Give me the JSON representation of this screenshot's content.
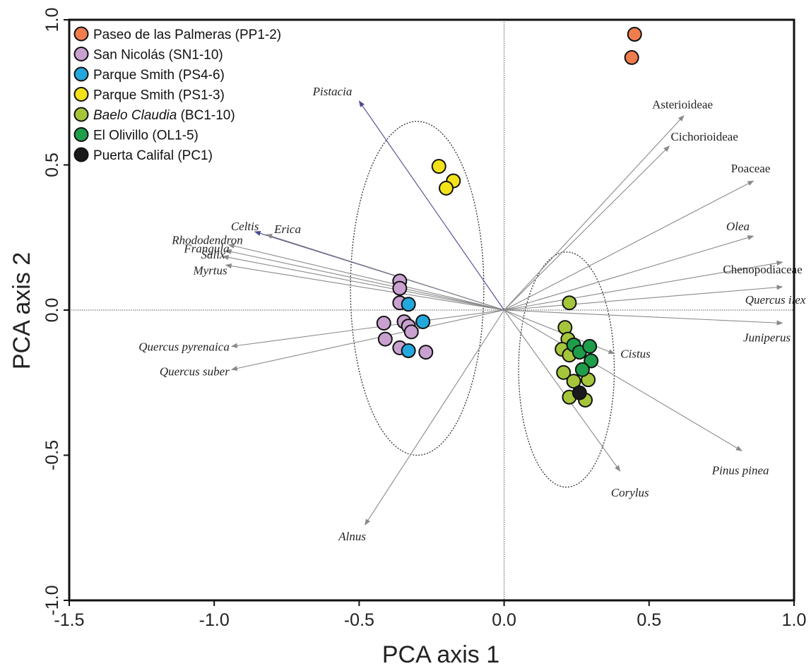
{
  "chart_data": {
    "type": "scatter",
    "title": "",
    "xlabel": "PCA axis 1",
    "ylabel": "PCA axis 2",
    "xlim": [
      -1.5,
      1.0
    ],
    "ylim": [
      -1.0,
      1.0
    ],
    "x_ticks": [
      "-1.5",
      "-1.0",
      "-0.5",
      "0.0",
      "0.5",
      "1.0"
    ],
    "y_ticks": [
      "-1.0",
      "-0.5",
      "0.0",
      "0.5",
      "1.0"
    ],
    "grid": false,
    "legend_position": "top-left",
    "series": [
      {
        "name": "Paseo de las Palmeras (PP1-2)",
        "name_italic_part": "",
        "name_rest": "Paseo de las Palmeras (PP1-2)",
        "color": "#f07d4e",
        "points": [
          [
            0.45,
            0.95
          ],
          [
            0.44,
            0.87
          ]
        ]
      },
      {
        "name": "San Nicolás (SN1-10)",
        "name_italic_part": "",
        "name_rest": "San Nicolás (SN1-10)",
        "color": "#c9a1d0",
        "points": [
          [
            -0.36,
            0.1
          ],
          [
            -0.36,
            0.075
          ],
          [
            -0.36,
            0.025
          ],
          [
            -0.345,
            -0.04
          ],
          [
            -0.33,
            -0.055
          ],
          [
            -0.32,
            -0.075
          ],
          [
            -0.415,
            -0.045
          ],
          [
            -0.41,
            -0.1
          ],
          [
            -0.36,
            -0.13
          ],
          [
            -0.27,
            -0.145
          ]
        ]
      },
      {
        "name": "Parque Smith (PS4-6)",
        "name_italic_part": "",
        "name_rest": "Parque Smith (PS4-6)",
        "color": "#22a8dc",
        "points": [
          [
            -0.33,
            0.02
          ],
          [
            -0.28,
            -0.04
          ],
          [
            -0.33,
            -0.14
          ]
        ]
      },
      {
        "name": "Parque Smith (PS1-3)",
        "name_italic_part": "",
        "name_rest": "Parque Smith (PS1-3)",
        "color": "#f3e21a",
        "points": [
          [
            -0.225,
            0.495
          ],
          [
            -0.175,
            0.445
          ],
          [
            -0.2,
            0.42
          ]
        ]
      },
      {
        "name": "Baelo Claudia (BC1-10)",
        "name_italic_part": "Baelo Claudia",
        "name_rest": " (BC1-10)",
        "color": "#a5c63b",
        "points": [
          [
            0.225,
            0.025
          ],
          [
            0.21,
            -0.06
          ],
          [
            0.22,
            -0.1
          ],
          [
            0.2,
            -0.135
          ],
          [
            0.225,
            -0.155
          ],
          [
            0.205,
            -0.215
          ],
          [
            0.24,
            -0.245
          ],
          [
            0.29,
            -0.24
          ],
          [
            0.225,
            -0.3
          ],
          [
            0.28,
            -0.31
          ]
        ]
      },
      {
        "name": "El Olivillo (OL1-5)",
        "name_italic_part": "",
        "name_rest": "El Olivillo (OL1-5)",
        "color": "#1e9e4a",
        "points": [
          [
            0.24,
            -0.12
          ],
          [
            0.26,
            -0.145
          ],
          [
            0.295,
            -0.125
          ],
          [
            0.3,
            -0.175
          ],
          [
            0.27,
            -0.205
          ]
        ]
      },
      {
        "name": "Puerta Califal (PC1)",
        "name_italic_part": "",
        "name_rest": "Puerta Califal (PC1)",
        "color": "#1a1a1a",
        "points": [
          [
            0.26,
            -0.285
          ]
        ]
      }
    ],
    "vectors": [
      {
        "label": "Pistacia",
        "italic": true,
        "x": -0.5,
        "y": 0.72,
        "color": "#4a4a8f"
      },
      {
        "label": "Celtis",
        "italic": true,
        "x": -0.86,
        "y": 0.27,
        "color": "#4a4a8f"
      },
      {
        "label": "Erica",
        "italic": true,
        "x": -0.82,
        "y": 0.26,
        "color": "#8a8a8a"
      },
      {
        "label": "Rhododendron",
        "italic": true,
        "x": -0.95,
        "y": 0.225,
        "color": "#8a8a8a"
      },
      {
        "label": "Frangula",
        "italic": true,
        "x": -0.96,
        "y": 0.205,
        "color": "#8a8a8a"
      },
      {
        "label": "Salix",
        "italic": true,
        "x": -0.97,
        "y": 0.185,
        "color": "#8a8a8a"
      },
      {
        "label": "Myrtus",
        "italic": true,
        "x": -0.96,
        "y": 0.155,
        "color": "#8a8a8a"
      },
      {
        "label": "Quercus pyrenaica",
        "italic": true,
        "x": -0.94,
        "y": -0.125,
        "color": "#8a8a8a"
      },
      {
        "label": "Quercus suber",
        "italic": true,
        "x": -0.94,
        "y": -0.205,
        "color": "#8a8a8a"
      },
      {
        "label": "Alnus",
        "italic": true,
        "x": -0.48,
        "y": -0.74,
        "color": "#8a8a8a"
      },
      {
        "label": "Asterioideae",
        "italic": false,
        "x": 0.62,
        "y": 0.67,
        "color": "#8a8a8a"
      },
      {
        "label": "Cichorioideae",
        "italic": false,
        "x": 0.57,
        "y": 0.565,
        "color": "#8a8a8a"
      },
      {
        "label": "Poaceae",
        "italic": false,
        "x": 0.86,
        "y": 0.445,
        "color": "#8a8a8a"
      },
      {
        "label": "Olea",
        "italic": true,
        "x": 0.86,
        "y": 0.255,
        "color": "#8a8a8a"
      },
      {
        "label": "Chenopodiaceae",
        "italic": false,
        "x": 0.96,
        "y": 0.165,
        "color": "#8a8a8a"
      },
      {
        "label": "Quercus ilex",
        "italic": true,
        "x": 0.96,
        "y": 0.08,
        "color": "#8a8a8a"
      },
      {
        "label": "Juniperus",
        "italic": true,
        "x": 0.96,
        "y": -0.045,
        "color": "#8a8a8a"
      },
      {
        "label": "Cistus",
        "italic": true,
        "x": 0.38,
        "y": -0.15,
        "color": "#8a8a8a"
      },
      {
        "label": "Pinus pinea",
        "italic": true,
        "x": 0.82,
        "y": -0.485,
        "color": "#8a8a8a"
      },
      {
        "label": "Corylus",
        "italic": true,
        "x": 0.4,
        "y": -0.555,
        "color": "#8a8a8a"
      }
    ],
    "ellipses": [
      {
        "cx": -0.3,
        "cy": 0.075,
        "rx": 0.23,
        "ry": 0.575
      },
      {
        "cx": 0.215,
        "cy": -0.205,
        "rx": 0.165,
        "ry": 0.405
      }
    ]
  }
}
